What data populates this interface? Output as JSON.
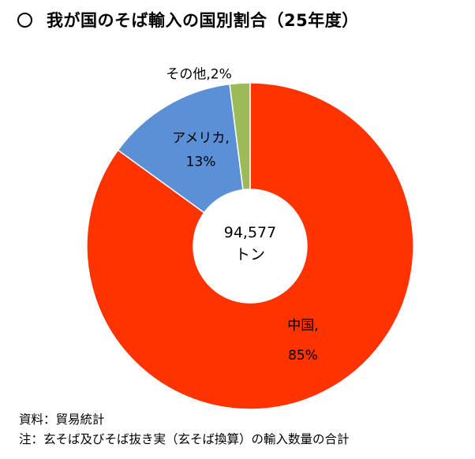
{
  "title": "〇　我が国のそば輸入の国別割合（25年度）",
  "title_text": "我が国のそば輸入の国別割合（25年度）",
  "center_label": {
    "value": "94,577",
    "unit": "トン"
  },
  "chart_data": {
    "type": "pie",
    "donut": true,
    "title": "我が国のそば輸入の国別割合（25年度）",
    "total": "94,577トン",
    "categories": [
      "中国",
      "アメリカ",
      "その他"
    ],
    "values": [
      85,
      13,
      2
    ],
    "unit": "%",
    "colors": [
      "#FF3300",
      "#5B8FD6",
      "#9BBB59"
    ],
    "slice_labels": [
      {
        "line1": "中国,",
        "line2": "85%"
      },
      {
        "line1": "アメリカ,",
        "line2": "13%"
      },
      {
        "line1": "その他,2%",
        "line2": ""
      }
    ]
  },
  "notes": [
    "資料：貿易統計",
    "注：玄そば及びそば抜き実（玄そば換算）の輸入数量の合計"
  ]
}
